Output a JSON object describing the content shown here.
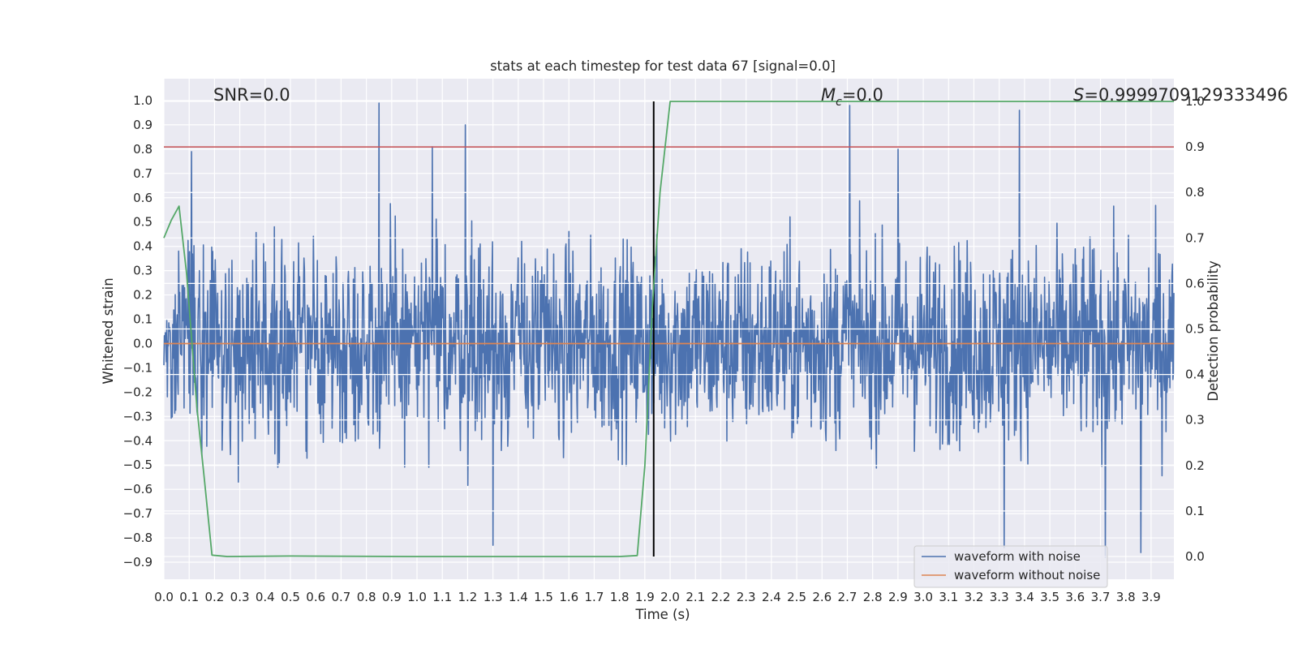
{
  "chart_data": {
    "type": "line",
    "title": "stats at each timestep for test data 67 [signal=0.0]",
    "xlabel": "Time (s)",
    "ylabel": "Whitened strain",
    "y2label": "Detection probability",
    "xlim": [
      0.0,
      3.99
    ],
    "ylim": [
      -0.97,
      1.09
    ],
    "y2lim": [
      -0.05,
      1.05
    ],
    "x_ticks": [
      0.0,
      0.1,
      0.2,
      0.3,
      0.4,
      0.5,
      0.6,
      0.7,
      0.8,
      0.9,
      1.0,
      1.1,
      1.2,
      1.3,
      1.4,
      1.5,
      1.6,
      1.7,
      1.8,
      1.9,
      2.0,
      2.1,
      2.2,
      2.3,
      2.4,
      2.5,
      2.6,
      2.7,
      2.8,
      2.9,
      3.0,
      3.1,
      3.2,
      3.3,
      3.4,
      3.5,
      3.6,
      3.7,
      3.8,
      3.9
    ],
    "x_tick_labels": [
      "0.0",
      "0.1",
      "0.2",
      "0.3",
      "0.4",
      "0.5",
      "0.6",
      "0.7",
      "0.8",
      "0.9",
      "1.0",
      "1.1",
      "1.2",
      "1.3",
      "1.4",
      "1.5",
      "1.6",
      "1.7",
      "1.8",
      "1.9",
      "2.0",
      "2.1",
      "2.2",
      "2.3",
      "2.4",
      "2.5",
      "2.6",
      "2.7",
      "2.8",
      "2.9",
      "3.0",
      "3.1",
      "3.2",
      "3.3",
      "3.4",
      "3.5",
      "3.6",
      "3.7",
      "3.8",
      "3.9"
    ],
    "y_ticks": [
      1.0,
      0.9,
      0.8,
      0.7,
      0.6,
      0.5,
      0.4,
      0.3,
      0.2,
      0.1,
      0.0,
      -0.1,
      -0.2,
      -0.3,
      -0.4,
      -0.5,
      -0.6,
      -0.7,
      -0.8,
      -0.9
    ],
    "y_tick_labels": [
      "1.0",
      "0.9",
      "0.8",
      "0.7",
      "0.6",
      "0.5",
      "0.4",
      "0.3",
      "0.2",
      "0.1",
      "0.0",
      "−0.1",
      "−0.2",
      "−0.3",
      "−0.4",
      "−0.5",
      "−0.6",
      "−0.7",
      "−0.8",
      "−0.9"
    ],
    "y2_ticks": [
      0.0,
      0.1,
      0.2,
      0.3,
      0.4,
      0.5,
      0.6,
      0.7,
      0.8,
      0.9,
      1.0
    ],
    "y2_tick_labels": [
      "0.0",
      "0.1",
      "0.2",
      "0.3",
      "0.4",
      "0.5",
      "0.6",
      "0.7",
      "0.8",
      "0.9",
      "1.0"
    ],
    "series": [
      {
        "name": "waveform with noise",
        "color": "#4c72b0",
        "kind": "noise",
        "n_samples": 2048,
        "envelope": 0.55,
        "peaks": [
          {
            "x": 0.85,
            "y": 0.99
          },
          {
            "x": 1.19,
            "y": 0.9
          },
          {
            "x": 2.71,
            "y": 0.98
          },
          {
            "x": 3.38,
            "y": 0.96
          },
          {
            "x": 0.11,
            "y": 0.79
          },
          {
            "x": 1.06,
            "y": 0.81
          },
          {
            "x": 2.9,
            "y": 0.8
          },
          {
            "x": 3.32,
            "y": -0.84
          },
          {
            "x": 3.86,
            "y": -0.86
          },
          {
            "x": 1.3,
            "y": -0.83
          },
          {
            "x": 3.72,
            "y": -0.88
          }
        ]
      },
      {
        "name": "waveform without noise",
        "color": "#dd8452",
        "x": [
          0.0,
          3.99
        ],
        "y": [
          0.0,
          0.0
        ]
      },
      {
        "name": "detection probability",
        "color": "#55a868",
        "axis": "right",
        "x": [
          0.0,
          0.03,
          0.06,
          0.09,
          0.13,
          0.16,
          0.19,
          0.25,
          0.5,
          1.0,
          1.5,
          1.8,
          1.87,
          1.9,
          1.93,
          1.96,
          2.0,
          2.5,
          3.0,
          3.5,
          3.99
        ],
        "y": [
          0.7,
          0.74,
          0.77,
          0.62,
          0.33,
          0.17,
          0.003,
          0.0,
          0.001,
          0.0,
          0.0,
          0.0,
          0.002,
          0.2,
          0.55,
          0.8,
          1.0,
          1.0,
          1.0,
          1.0,
          1.0
        ]
      }
    ],
    "threshold": {
      "value": 0.9,
      "axis": "right",
      "color": "#c44e52"
    },
    "vline": {
      "x": 1.935,
      "y2_range": [
        0.0,
        1.0
      ],
      "color": "#000000"
    },
    "annotations": {
      "snr": "SNR=0.0",
      "mc_symbol": "M",
      "mc_subscript": "c",
      "mc_value": "=0.0",
      "s_symbol": "S",
      "s_value": "=0.9999709129333496"
    },
    "legend": {
      "position": "lower-right",
      "entries": [
        {
          "label": "waveform with noise",
          "color": "#4c72b0"
        },
        {
          "label": "waveform without noise",
          "color": "#dd8452"
        }
      ]
    },
    "grid": true
  }
}
